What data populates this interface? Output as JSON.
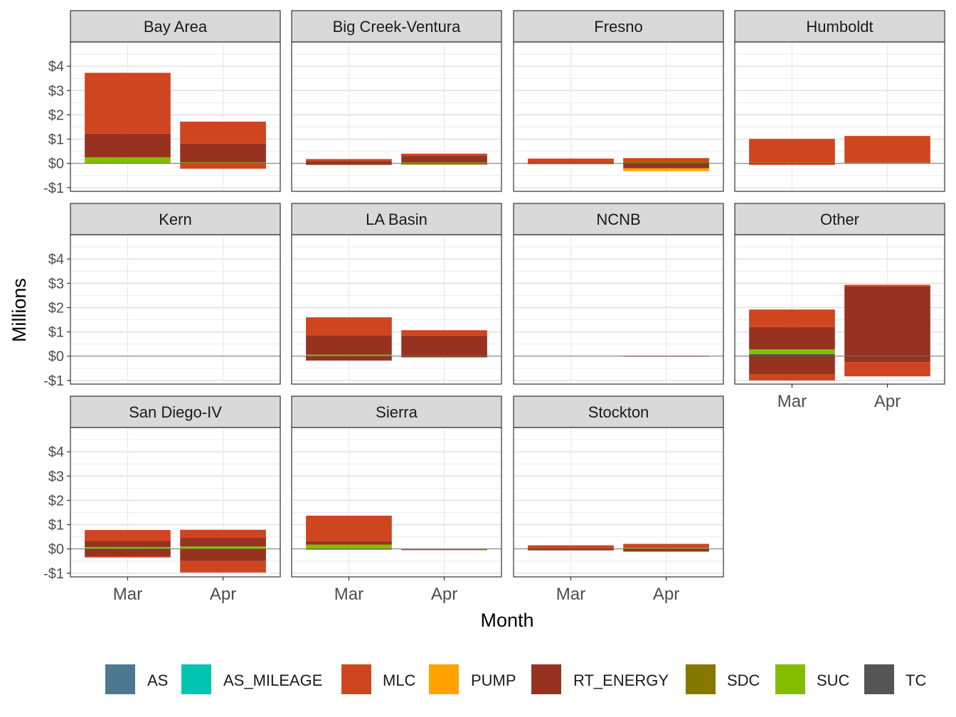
{
  "chart_data": {
    "type": "bar",
    "stacked": true,
    "faceted": true,
    "facet_columns": 4,
    "xlabel": "Month",
    "ylabel": "Millions",
    "ylim": [
      -1.15,
      5.0
    ],
    "y_ticks": [
      -1,
      0,
      1,
      2,
      3,
      4
    ],
    "y_tick_labels": [
      "-$1",
      "$0",
      "$1",
      "$2",
      "$3",
      "$4"
    ],
    "categories": [
      "Mar",
      "Apr"
    ],
    "grid": true,
    "legend_position": "bottom",
    "legend": [
      {
        "name": "AS",
        "color": "#4e7890"
      },
      {
        "name": "AS_MILEAGE",
        "color": "#00c4b0"
      },
      {
        "name": "MLC",
        "color": "#cf4520"
      },
      {
        "name": "PUMP",
        "color": "#ffa300"
      },
      {
        "name": "RT_ENERGY",
        "color": "#973120"
      },
      {
        "name": "SDC",
        "color": "#857700"
      },
      {
        "name": "SUC",
        "color": "#84bd00"
      },
      {
        "name": "TC",
        "color": "#555555"
      }
    ],
    "panels": [
      {
        "title": "Bay Area",
        "bars": [
          {
            "month": "Mar",
            "segments": [
              {
                "series": "SUC",
                "value": 0.25
              },
              {
                "series": "RT_ENERGY",
                "value": 0.98
              },
              {
                "series": "MLC",
                "value": 2.5
              }
            ]
          },
          {
            "month": "Apr",
            "segments": [
              {
                "series": "SUC",
                "value": 0.04
              },
              {
                "series": "RT_ENERGY",
                "value": 0.78
              },
              {
                "series": "MLC",
                "value": 0.9
              },
              {
                "series": "MLC",
                "value": -0.22
              }
            ]
          }
        ]
      },
      {
        "title": "Big Creek-Ventura",
        "bars": [
          {
            "month": "Mar",
            "segments": [
              {
                "series": "RT_ENERGY",
                "value": 0.1
              },
              {
                "series": "MLC",
                "value": 0.08
              },
              {
                "series": "RT_ENERGY",
                "value": -0.06
              }
            ]
          },
          {
            "month": "Apr",
            "segments": [
              {
                "series": "SUC",
                "value": 0.04
              },
              {
                "series": "RT_ENERGY",
                "value": 0.26
              },
              {
                "series": "MLC",
                "value": 0.1
              },
              {
                "series": "SDC",
                "value": -0.05
              }
            ]
          }
        ]
      },
      {
        "title": "Fresno",
        "bars": [
          {
            "month": "Mar",
            "segments": [
              {
                "series": "MLC",
                "value": 0.2
              },
              {
                "series": "SDC",
                "value": -0.02
              }
            ]
          },
          {
            "month": "Apr",
            "segments": [
              {
                "series": "SDC",
                "value": 0.08
              },
              {
                "series": "MLC",
                "value": 0.14
              },
              {
                "series": "RT_ENERGY",
                "value": -0.2
              },
              {
                "series": "PUMP",
                "value": -0.12
              }
            ]
          }
        ]
      },
      {
        "title": "Humboldt",
        "bars": [
          {
            "month": "Mar",
            "segments": [
              {
                "series": "SDC",
                "value": 0.03
              },
              {
                "series": "MLC",
                "value": 0.98
              },
              {
                "series": "MLC",
                "value": -0.06
              }
            ]
          },
          {
            "month": "Apr",
            "segments": [
              {
                "series": "SUC",
                "value": 0.03
              },
              {
                "series": "MLC",
                "value": 1.1
              }
            ]
          }
        ]
      },
      {
        "title": "Kern",
        "bars": []
      },
      {
        "title": "LA Basin",
        "bars": [
          {
            "month": "Mar",
            "segments": [
              {
                "series": "SUC",
                "value": 0.06
              },
              {
                "series": "RT_ENERGY",
                "value": 0.8
              },
              {
                "series": "MLC",
                "value": 0.74
              },
              {
                "series": "RT_ENERGY",
                "value": -0.18
              }
            ]
          },
          {
            "month": "Apr",
            "segments": [
              {
                "series": "SUC",
                "value": 0.02
              },
              {
                "series": "RT_ENERGY",
                "value": 0.83
              },
              {
                "series": "MLC",
                "value": 0.22
              },
              {
                "series": "RT_ENERGY",
                "value": -0.05
              }
            ]
          }
        ]
      },
      {
        "title": "NCNB",
        "bars": [
          {
            "month": "Apr",
            "segments": [
              {
                "series": "MLC",
                "value": 0.02
              }
            ]
          }
        ]
      },
      {
        "title": "Other",
        "bars": [
          {
            "month": "Mar",
            "segments": [
              {
                "series": "TC",
                "value": 0.08
              },
              {
                "series": "SUC",
                "value": 0.2
              },
              {
                "series": "RT_ENERGY",
                "value": 0.92
              },
              {
                "series": "MLC",
                "value": 0.72
              },
              {
                "series": "RT_ENERGY",
                "value": -0.75
              },
              {
                "series": "MLC",
                "value": -0.25
              }
            ]
          },
          {
            "month": "Apr",
            "segments": [
              {
                "series": "SUC",
                "value": 0.02
              },
              {
                "series": "RT_ENERGY",
                "value": 2.85
              },
              {
                "series": "MLC",
                "value": 0.07
              },
              {
                "series": "RT_ENERGY",
                "value": -0.25
              },
              {
                "series": "MLC",
                "value": -0.58
              }
            ]
          }
        ]
      },
      {
        "title": "San Diego-IV",
        "bars": [
          {
            "month": "Mar",
            "segments": [
              {
                "series": "SUC",
                "value": 0.08
              },
              {
                "series": "RT_ENERGY",
                "value": 0.25
              },
              {
                "series": "MLC",
                "value": 0.45
              },
              {
                "series": "RT_ENERGY",
                "value": -0.3
              },
              {
                "series": "MLC",
                "value": -0.05
              }
            ]
          },
          {
            "month": "Apr",
            "segments": [
              {
                "series": "SUC",
                "value": 0.1
              },
              {
                "series": "RT_ENERGY",
                "value": 0.36
              },
              {
                "series": "MLC",
                "value": 0.33
              },
              {
                "series": "RT_ENERGY",
                "value": -0.5
              },
              {
                "series": "MLC",
                "value": -0.47
              }
            ]
          }
        ]
      },
      {
        "title": "Sierra",
        "bars": [
          {
            "month": "Mar",
            "segments": [
              {
                "series": "SUC",
                "value": 0.18
              },
              {
                "series": "RT_ENERGY",
                "value": 0.14
              },
              {
                "series": "MLC",
                "value": 1.05
              },
              {
                "series": "SDC",
                "value": -0.02
              }
            ]
          },
          {
            "month": "Apr",
            "segments": [
              {
                "series": "MLC",
                "value": -0.05
              }
            ]
          }
        ]
      },
      {
        "title": "Stockton",
        "bars": [
          {
            "month": "Mar",
            "segments": [
              {
                "series": "MLC",
                "value": 0.15
              },
              {
                "series": "RT_ENERGY",
                "value": -0.06
              }
            ]
          },
          {
            "month": "Apr",
            "segments": [
              {
                "series": "SUC",
                "value": 0.04
              },
              {
                "series": "MLC",
                "value": 0.17
              },
              {
                "series": "RT_ENERGY",
                "value": -0.11
              }
            ]
          }
        ]
      }
    ]
  }
}
